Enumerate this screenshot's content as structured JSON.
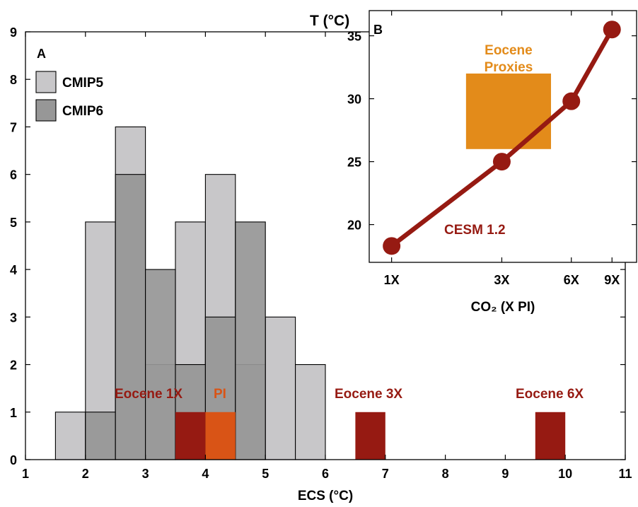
{
  "chart_data": [
    {
      "type": "bar",
      "panel_label": "A",
      "xlabel": "ECS (°C)",
      "xlim": [
        1,
        11
      ],
      "ylim": [
        0,
        9
      ],
      "xticks": [
        1,
        2,
        3,
        4,
        5,
        6,
        7,
        8,
        9,
        10,
        11
      ],
      "yticks": [
        0,
        1,
        2,
        3,
        4,
        5,
        6,
        7,
        8,
        9
      ],
      "bin_width": 0.5,
      "legend": {
        "position": "top-left",
        "entries": [
          "CMIP5",
          "CMIP6"
        ]
      },
      "series": [
        {
          "name": "CMIP5",
          "color": "#c8c7c9",
          "bins": [
            {
              "x0": 1.5,
              "x1": 2.0,
              "value": 1
            },
            {
              "x0": 2.0,
              "x1": 2.5,
              "value": 5
            },
            {
              "x0": 2.5,
              "x1": 3.0,
              "value": 7
            },
            {
              "x0": 3.0,
              "x1": 3.5,
              "value": 2
            },
            {
              "x0": 3.5,
              "x1": 4.0,
              "value": 5
            },
            {
              "x0": 4.0,
              "x1": 4.5,
              "value": 6
            },
            {
              "x0": 4.5,
              "x1": 5.0,
              "value": 2
            },
            {
              "x0": 5.0,
              "x1": 5.5,
              "value": 3
            },
            {
              "x0": 5.5,
              "x1": 6.0,
              "value": 2
            }
          ]
        },
        {
          "name": "CMIP6",
          "color": "#979797",
          "bins": [
            {
              "x0": 2.0,
              "x1": 2.5,
              "value": 1
            },
            {
              "x0": 2.5,
              "x1": 3.0,
              "value": 6
            },
            {
              "x0": 3.0,
              "x1": 3.5,
              "value": 4
            },
            {
              "x0": 3.5,
              "x1": 4.0,
              "value": 2
            },
            {
              "x0": 4.0,
              "x1": 4.5,
              "value": 3
            },
            {
              "x0": 4.5,
              "x1": 5.0,
              "value": 5
            }
          ]
        }
      ],
      "markers": [
        {
          "label": "Eocene 1X",
          "x0": 3.5,
          "x1": 4.0,
          "value": 1,
          "color": "#961a12"
        },
        {
          "label": "PI",
          "x0": 4.0,
          "x1": 4.5,
          "value": 1,
          "color": "#d95416"
        },
        {
          "label": "Eocene 3X",
          "x0": 6.5,
          "x1": 7.0,
          "value": 1,
          "color": "#961a12"
        },
        {
          "label": "Eocene 6X",
          "x0": 9.5,
          "x1": 10.0,
          "value": 1,
          "color": "#961a12"
        }
      ]
    },
    {
      "type": "line",
      "panel_label": "B",
      "ylabel": "T (°C)",
      "xlabel": "CO₂ (X PI)",
      "x_scale": "log",
      "xticks": [
        {
          "value": 1,
          "label": "1X"
        },
        {
          "value": 3,
          "label": "3X"
        },
        {
          "value": 6,
          "label": "6X"
        },
        {
          "value": 9,
          "label": "9X"
        }
      ],
      "yticks": [
        20,
        25,
        30,
        35
      ],
      "ylim": [
        17,
        37
      ],
      "xlim": [
        0.8,
        11.5
      ],
      "series": [
        {
          "name": "CESM 1.2",
          "color": "#961a12",
          "x": [
            1,
            3,
            6,
            9
          ],
          "y": [
            18.3,
            25.0,
            29.8,
            35.5
          ]
        }
      ],
      "proxy_box": {
        "label": "Eocene Proxies",
        "color": "#e38b1a",
        "x": [
          2.1,
          4.9
        ],
        "y": [
          26,
          32
        ]
      }
    }
  ]
}
